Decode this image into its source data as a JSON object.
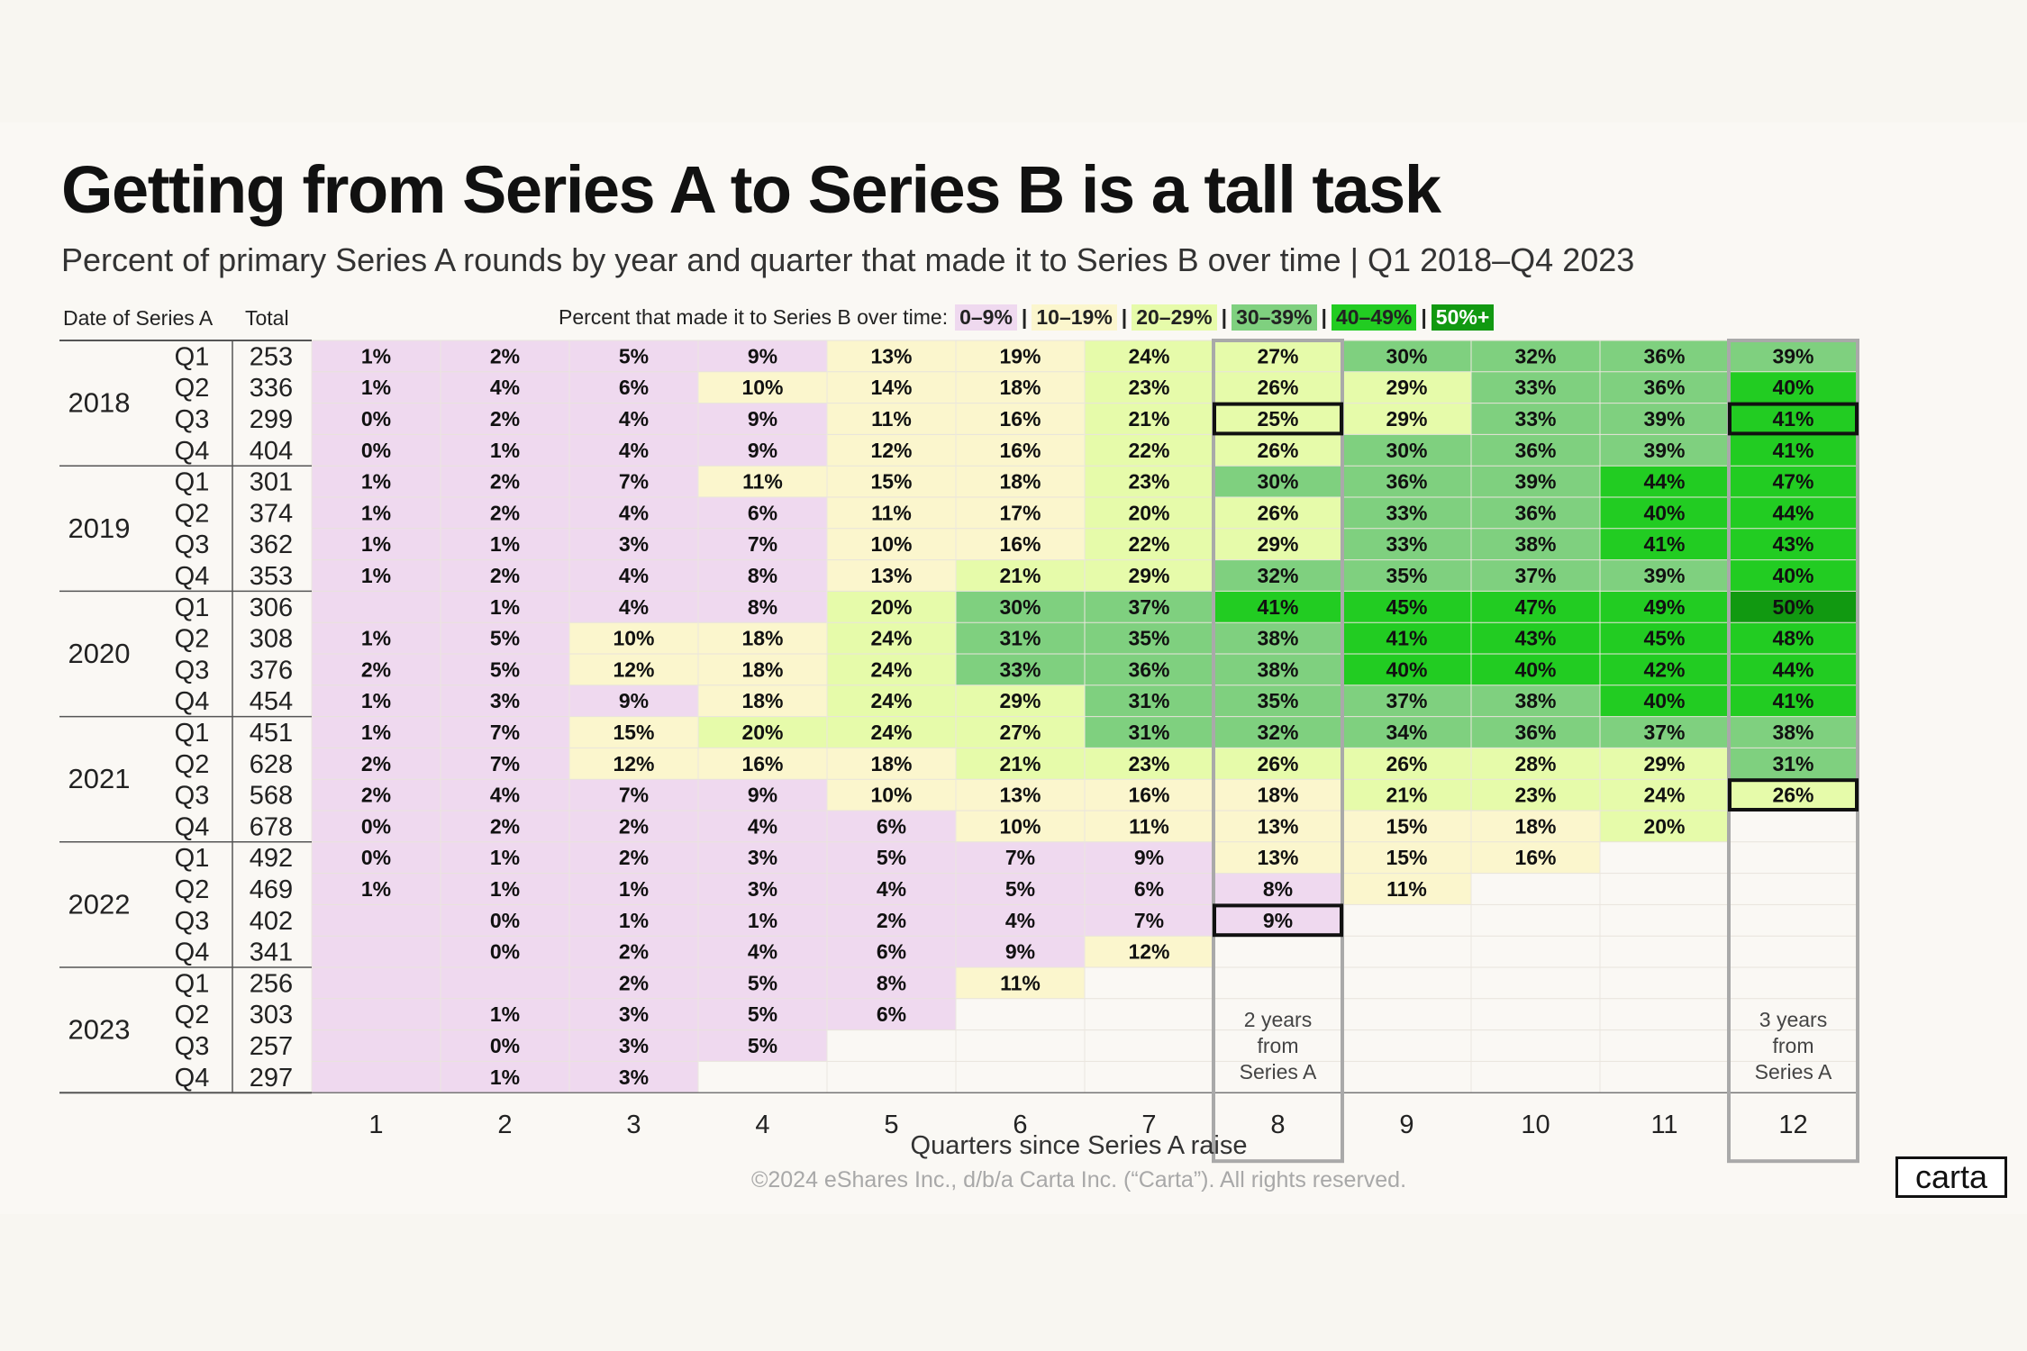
{
  "title": "Getting from Series A to Series B is a tall task",
  "subtitle": "Percent of primary Series A rounds by year and quarter that made it to Series B over time | Q1 2018–Q4 2023",
  "headers": {
    "date": "Date of Series A",
    "total": "Total"
  },
  "legend": {
    "label": "Percent that made it to Series B over time:",
    "separator": "|",
    "items": [
      {
        "label": "0–9%",
        "color": "#efd9ef"
      },
      {
        "label": "10–19%",
        "color": "#fbf6cd"
      },
      {
        "label": "20–29%",
        "color": "#e6fbaa"
      },
      {
        "label": "30–39%",
        "color": "#7fd07f"
      },
      {
        "label": "40–49%",
        "color": "#22cc22"
      },
      {
        "label": "50%+",
        "color": "#119911"
      }
    ]
  },
  "annotations": {
    "col8": [
      "2 years",
      "from",
      "Series A"
    ],
    "col12": [
      "3 years",
      "from",
      "Series A"
    ]
  },
  "chart_data": {
    "type": "table",
    "xlabel": "Quarters since Series A raise",
    "x": [
      1,
      2,
      3,
      4,
      5,
      6,
      7,
      8,
      9,
      10,
      11,
      12
    ],
    "years": [
      "2018",
      "2019",
      "2020",
      "2021",
      "2022",
      "2023"
    ],
    "rows": [
      {
        "year": "2018",
        "quarter": "Q1",
        "total": 253,
        "values": [
          "1%",
          "2%",
          "5%",
          "9%",
          "13%",
          "19%",
          "24%",
          "27%",
          "30%",
          "32%",
          "36%",
          "39%"
        ]
      },
      {
        "year": "2018",
        "quarter": "Q2",
        "total": 336,
        "values": [
          "1%",
          "4%",
          "6%",
          "10%",
          "14%",
          "18%",
          "23%",
          "26%",
          "29%",
          "33%",
          "36%",
          "40%"
        ]
      },
      {
        "year": "2018",
        "quarter": "Q3",
        "total": 299,
        "values": [
          "0%",
          "2%",
          "4%",
          "9%",
          "11%",
          "16%",
          "21%",
          "25%",
          "29%",
          "33%",
          "39%",
          "41%"
        ]
      },
      {
        "year": "2018",
        "quarter": "Q4",
        "total": 404,
        "values": [
          "0%",
          "1%",
          "4%",
          "9%",
          "12%",
          "16%",
          "22%",
          "26%",
          "30%",
          "36%",
          "39%",
          "41%"
        ]
      },
      {
        "year": "2019",
        "quarter": "Q1",
        "total": 301,
        "values": [
          "1%",
          "2%",
          "7%",
          "11%",
          "15%",
          "18%",
          "23%",
          "30%",
          "36%",
          "39%",
          "44%",
          "47%"
        ]
      },
      {
        "year": "2019",
        "quarter": "Q2",
        "total": 374,
        "values": [
          "1%",
          "2%",
          "4%",
          "6%",
          "11%",
          "17%",
          "20%",
          "26%",
          "33%",
          "36%",
          "40%",
          "44%"
        ]
      },
      {
        "year": "2019",
        "quarter": "Q3",
        "total": 362,
        "values": [
          "1%",
          "1%",
          "3%",
          "7%",
          "10%",
          "16%",
          "22%",
          "29%",
          "33%",
          "38%",
          "41%",
          "43%"
        ]
      },
      {
        "year": "2019",
        "quarter": "Q4",
        "total": 353,
        "values": [
          "1%",
          "2%",
          "4%",
          "8%",
          "13%",
          "21%",
          "29%",
          "32%",
          "35%",
          "37%",
          "39%",
          "40%"
        ]
      },
      {
        "year": "2020",
        "quarter": "Q1",
        "total": 306,
        "values": [
          "",
          "1%",
          "4%",
          "8%",
          "20%",
          "30%",
          "37%",
          "41%",
          "45%",
          "47%",
          "49%",
          "50%"
        ]
      },
      {
        "year": "2020",
        "quarter": "Q2",
        "total": 308,
        "values": [
          "1%",
          "5%",
          "10%",
          "18%",
          "24%",
          "31%",
          "35%",
          "38%",
          "41%",
          "43%",
          "45%",
          "48%"
        ]
      },
      {
        "year": "2020",
        "quarter": "Q3",
        "total": 376,
        "values": [
          "2%",
          "5%",
          "12%",
          "18%",
          "24%",
          "33%",
          "36%",
          "38%",
          "40%",
          "40%",
          "42%",
          "44%"
        ]
      },
      {
        "year": "2020",
        "quarter": "Q4",
        "total": 454,
        "values": [
          "1%",
          "3%",
          "9%",
          "18%",
          "24%",
          "29%",
          "31%",
          "35%",
          "37%",
          "38%",
          "40%",
          "41%"
        ]
      },
      {
        "year": "2021",
        "quarter": "Q1",
        "total": 451,
        "values": [
          "1%",
          "7%",
          "15%",
          "20%",
          "24%",
          "27%",
          "31%",
          "32%",
          "34%",
          "36%",
          "37%",
          "38%"
        ]
      },
      {
        "year": "2021",
        "quarter": "Q2",
        "total": 628,
        "values": [
          "2%",
          "7%",
          "12%",
          "16%",
          "18%",
          "21%",
          "23%",
          "26%",
          "26%",
          "28%",
          "29%",
          "31%"
        ]
      },
      {
        "year": "2021",
        "quarter": "Q3",
        "total": 568,
        "values": [
          "2%",
          "4%",
          "7%",
          "9%",
          "10%",
          "13%",
          "16%",
          "18%",
          "21%",
          "23%",
          "24%",
          "26%"
        ]
      },
      {
        "year": "2021",
        "quarter": "Q4",
        "total": 678,
        "values": [
          "0%",
          "2%",
          "2%",
          "4%",
          "6%",
          "10%",
          "11%",
          "13%",
          "15%",
          "18%",
          "20%",
          null
        ]
      },
      {
        "year": "2022",
        "quarter": "Q1",
        "total": 492,
        "values": [
          "0%",
          "1%",
          "2%",
          "3%",
          "5%",
          "7%",
          "9%",
          "13%",
          "15%",
          "16%",
          null,
          null
        ]
      },
      {
        "year": "2022",
        "quarter": "Q2",
        "total": 469,
        "values": [
          "1%",
          "1%",
          "1%",
          "3%",
          "4%",
          "5%",
          "6%",
          "8%",
          "11%",
          null,
          null,
          null
        ]
      },
      {
        "year": "2022",
        "quarter": "Q3",
        "total": 402,
        "values": [
          "",
          "0%",
          "1%",
          "1%",
          "2%",
          "4%",
          "7%",
          "9%",
          null,
          null,
          null,
          null
        ]
      },
      {
        "year": "2022",
        "quarter": "Q4",
        "total": 341,
        "values": [
          "",
          "0%",
          "2%",
          "4%",
          "6%",
          "9%",
          "12%",
          null,
          null,
          null,
          null,
          null
        ]
      },
      {
        "year": "2023",
        "quarter": "Q1",
        "total": 256,
        "values": [
          "",
          "",
          "2%",
          "5%",
          "8%",
          "11%",
          null,
          null,
          null,
          null,
          null,
          null
        ]
      },
      {
        "year": "2023",
        "quarter": "Q2",
        "total": 303,
        "values": [
          "",
          "1%",
          "3%",
          "5%",
          "6%",
          null,
          null,
          null,
          null,
          null,
          null,
          null
        ]
      },
      {
        "year": "2023",
        "quarter": "Q3",
        "total": 257,
        "values": [
          "",
          "0%",
          "3%",
          "5%",
          null,
          null,
          null,
          null,
          null,
          null,
          null,
          null
        ]
      },
      {
        "year": "2023",
        "quarter": "Q4",
        "total": 297,
        "values": [
          "",
          "1%",
          "3%",
          null,
          null,
          null,
          null,
          null,
          null,
          null,
          null,
          null
        ]
      }
    ],
    "highlighted_cells": [
      {
        "year": "2018",
        "quarter": "Q3",
        "x": 8
      },
      {
        "year": "2018",
        "quarter": "Q3",
        "x": 12
      },
      {
        "year": "2021",
        "quarter": "Q3",
        "x": 12
      },
      {
        "year": "2022",
        "quarter": "Q3",
        "x": 8
      }
    ],
    "highlighted_columns": [
      8,
      12
    ]
  },
  "footer": {
    "copyright": "©2024 eShares Inc., d/b/a Carta Inc. (“Carta”). All rights reserved.",
    "logo": "carta"
  }
}
